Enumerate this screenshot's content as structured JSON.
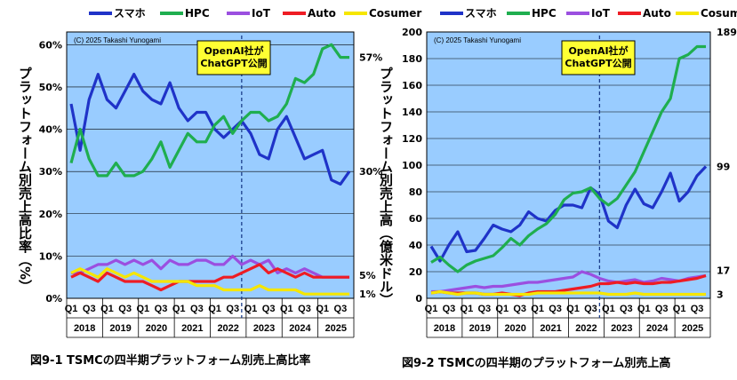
{
  "chart_data": [
    {
      "type": "line",
      "caption": "図9-1  TSMCの四半期プラットフォーム別売上高比率",
      "copyright": "(C) 2025 Takashi Yunogami",
      "ylabel": "プラットフォーム別売上高比率（%）",
      "yticks": [
        "0%",
        "10%",
        "20%",
        "30%",
        "40%",
        "50%",
        "60%"
      ],
      "ylim": [
        0,
        63
      ],
      "quarter_ticks": [
        "Q1",
        "Q3"
      ],
      "years": [
        "2018",
        "2019",
        "2020",
        "2021",
        "2022",
        "2023",
        "2024",
        "2025"
      ],
      "annotation": {
        "lines": [
          "OpenAI社が",
          "ChatGPT公開"
        ],
        "quarter_index": 19.5
      },
      "legend_position": "top",
      "series": [
        {
          "name": "スマホ",
          "color": "#1f33c8",
          "end_label": "30%",
          "values": [
            46,
            35,
            47,
            53,
            47,
            45,
            49,
            53,
            49,
            47,
            46,
            51,
            45,
            42,
            44,
            44,
            40,
            38,
            40,
            42,
            39,
            34,
            33,
            40,
            43,
            38,
            33,
            34,
            35,
            28,
            27,
            30
          ]
        },
        {
          "name": "HPC",
          "color": "#1fae4f",
          "end_label": "57%",
          "values": [
            32,
            40,
            33,
            29,
            29,
            32,
            29,
            29,
            30,
            33,
            37,
            31,
            35,
            39,
            37,
            37,
            41,
            43,
            39,
            42,
            44,
            44,
            42,
            43,
            46,
            52,
            51,
            53,
            59,
            60,
            57,
            57
          ]
        },
        {
          "name": "IoT",
          "color": "#9b4fe0",
          "end_label": "",
          "values": [
            6,
            6,
            7,
            8,
            8,
            9,
            8,
            9,
            8,
            9,
            7,
            9,
            8,
            8,
            9,
            9,
            8,
            8,
            10,
            8,
            9,
            8,
            9,
            6,
            7,
            6,
            7,
            6,
            5,
            5,
            5,
            5
          ]
        },
        {
          "name": "Auto",
          "color": "#ee1c24",
          "end_label": "5%",
          "values": [
            5,
            6,
            5,
            4,
            6,
            5,
            4,
            4,
            4,
            3,
            2,
            3,
            4,
            4,
            4,
            4,
            4,
            5,
            5,
            6,
            7,
            8,
            6,
            7,
            6,
            5,
            6,
            5,
            5,
            5,
            5,
            5
          ]
        },
        {
          "name": "Cosumer",
          "color": "#f6e600",
          "end_label": "1%",
          "values": [
            6,
            7,
            6,
            5,
            7,
            6,
            5,
            6,
            5,
            4,
            4,
            4,
            4,
            4,
            3,
            3,
            3,
            2,
            2,
            2,
            2,
            3,
            2,
            2,
            2,
            2,
            1,
            1,
            1,
            1,
            1,
            1
          ]
        }
      ]
    },
    {
      "type": "line",
      "caption": "図9-2  TSMCの四半期のプラットフォーム別売上高",
      "copyright": "(C) 2025 Takashi Yunogami",
      "ylabel": "プラットフォーム別売上高（億米ドル）",
      "yticks": [
        "0",
        "20",
        "40",
        "60",
        "80",
        "100",
        "120",
        "140",
        "160",
        "180",
        "200"
      ],
      "ylim": [
        0,
        200
      ],
      "quarter_ticks": [
        "Q1",
        "Q3"
      ],
      "years": [
        "2018",
        "2019",
        "2020",
        "2021",
        "2022",
        "2023",
        "2024",
        "2025"
      ],
      "annotation": {
        "lines": [
          "OpenAI社が",
          "ChatGPT公開"
        ],
        "quarter_index": 19.5
      },
      "legend_position": "top",
      "series": [
        {
          "name": "スマホ",
          "color": "#1f33c8",
          "end_label": "99",
          "values": [
            39,
            28,
            40,
            50,
            35,
            36,
            45,
            55,
            52,
            50,
            55,
            65,
            60,
            58,
            66,
            70,
            70,
            68,
            83,
            78,
            58,
            53,
            70,
            82,
            71,
            68,
            80,
            94,
            73,
            80,
            92,
            99
          ]
        },
        {
          "name": "HPC",
          "color": "#1fae4f",
          "end_label": "189",
          "values": [
            27,
            31,
            25,
            20,
            25,
            28,
            30,
            32,
            38,
            45,
            40,
            47,
            52,
            56,
            63,
            74,
            79,
            80,
            83,
            75,
            70,
            75,
            85,
            95,
            110,
            125,
            140,
            150,
            180,
            183,
            189,
            189
          ]
        },
        {
          "name": "IoT",
          "color": "#9b4fe0",
          "end_label": "",
          "values": [
            5,
            5,
            6,
            7,
            8,
            9,
            8,
            9,
            9,
            10,
            11,
            12,
            12,
            13,
            14,
            15,
            16,
            20,
            18,
            15,
            13,
            12,
            13,
            14,
            12,
            13,
            15,
            14,
            13,
            15,
            16,
            17
          ]
        },
        {
          "name": "Auto",
          "color": "#ee1c24",
          "end_label": "17",
          "values": [
            4,
            5,
            4,
            4,
            4,
            4,
            3,
            3,
            4,
            3,
            2,
            4,
            5,
            5,
            5,
            6,
            7,
            8,
            9,
            11,
            11,
            12,
            11,
            12,
            11,
            11,
            12,
            12,
            13,
            14,
            15,
            17
          ]
        },
        {
          "name": "Cosumer",
          "color": "#f6e600",
          "end_label": "3",
          "values": [
            4,
            5,
            4,
            3,
            4,
            4,
            3,
            3,
            3,
            3,
            3,
            3,
            4,
            4,
            4,
            4,
            4,
            4,
            4,
            4,
            3,
            3,
            3,
            4,
            3,
            3,
            3,
            3,
            3,
            3,
            3,
            3
          ]
        }
      ]
    }
  ]
}
